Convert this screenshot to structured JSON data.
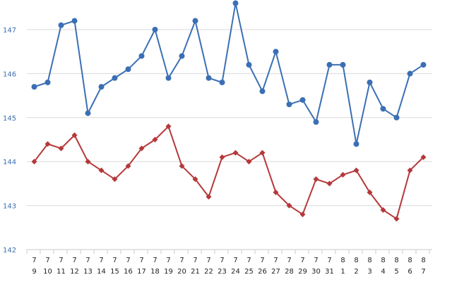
{
  "chart_data": {
    "type": "line",
    "categories": [
      [
        "7",
        "9"
      ],
      [
        "7",
        "10"
      ],
      [
        "7",
        "11"
      ],
      [
        "7",
        "12"
      ],
      [
        "7",
        "13"
      ],
      [
        "7",
        "14"
      ],
      [
        "7",
        "15"
      ],
      [
        "7",
        "16"
      ],
      [
        "7",
        "17"
      ],
      [
        "7",
        "18"
      ],
      [
        "7",
        "19"
      ],
      [
        "7",
        "20"
      ],
      [
        "7",
        "21"
      ],
      [
        "7",
        "22"
      ],
      [
        "7",
        "23"
      ],
      [
        "7",
        "24"
      ],
      [
        "7",
        "25"
      ],
      [
        "7",
        "26"
      ],
      [
        "7",
        "27"
      ],
      [
        "7",
        "28"
      ],
      [
        "7",
        "29"
      ],
      [
        "7",
        "30"
      ],
      [
        "7",
        "31"
      ],
      [
        "8",
        "1"
      ],
      [
        "8",
        "2"
      ],
      [
        "8",
        "3"
      ],
      [
        "8",
        "4"
      ],
      [
        "8",
        "5"
      ],
      [
        "8",
        "6"
      ],
      [
        "8",
        "7"
      ]
    ],
    "series": [
      {
        "color": "#3b6fb5",
        "marker": "circle",
        "values": [
          145.7,
          145.8,
          147.1,
          147.2,
          145.1,
          145.7,
          145.9,
          146.1,
          146.4,
          147.0,
          145.9,
          146.4,
          147.2,
          145.9,
          145.8,
          147.6,
          146.2,
          145.6,
          146.5,
          145.3,
          145.4,
          144.9,
          146.2,
          146.2,
          144.4,
          145.8,
          145.2,
          145.0,
          146.0,
          146.2
        ]
      },
      {
        "color": "#b5383a",
        "marker": "diamond",
        "values": [
          144.0,
          144.4,
          144.3,
          144.6,
          144.0,
          143.8,
          143.6,
          143.9,
          144.3,
          144.5,
          144.8,
          143.9,
          143.6,
          143.2,
          144.1,
          144.2,
          144.0,
          144.2,
          143.3,
          143.0,
          142.8,
          143.6,
          143.5,
          143.7,
          143.8,
          143.3,
          142.9,
          142.7,
          143.8,
          144.1
        ]
      }
    ],
    "yticks": [
      142,
      143,
      144,
      145,
      146,
      147
    ],
    "ylim": [
      142,
      147.55
    ],
    "grid": true,
    "legend": "none"
  }
}
